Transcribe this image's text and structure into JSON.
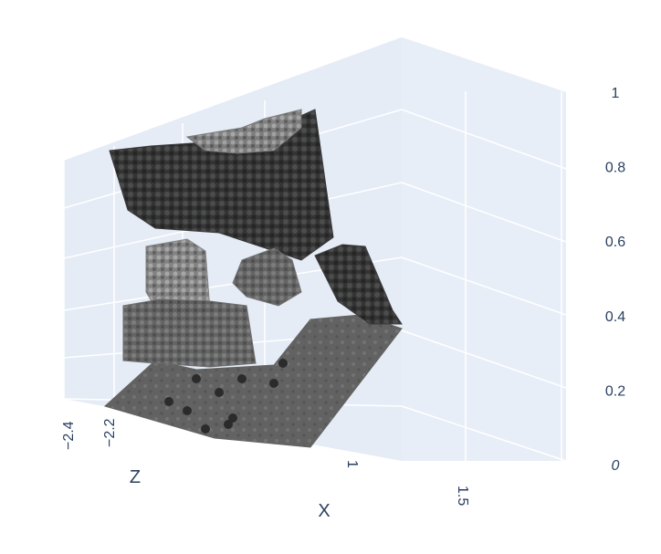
{
  "chart_data": {
    "type": "scatter3d",
    "title": "",
    "axes": {
      "x": {
        "title": "X",
        "tick_labels": [
          "1",
          "1.5"
        ],
        "ticks": [
          1.0,
          1.5
        ]
      },
      "y": {
        "title": "",
        "tick_labels": [
          "0",
          "0.2",
          "0.4",
          "0.6",
          "0.8",
          "1"
        ],
        "ticks": [
          0,
          0.2,
          0.4,
          0.6,
          0.8,
          1.0
        ],
        "range": [
          0,
          1
        ]
      },
      "z": {
        "title": "Z",
        "tick_labels": [
          "−2.4",
          "−2.2"
        ],
        "ticks": [
          -2.4,
          -2.2
        ]
      }
    },
    "grid": true,
    "legend": "none",
    "marker_colorscale": "greys",
    "background_colors": {
      "plane": "#e5ecf6",
      "grid": "#ffffff",
      "axis_text": "#2a3f5f"
    },
    "point_cloud_regions": [
      {
        "name": "floor",
        "shade": "#5f5f5f"
      },
      {
        "name": "back-wall",
        "shade": "#333333"
      },
      {
        "name": "right-panel",
        "shade": "#3a3a3a"
      },
      {
        "name": "left-cabinet",
        "shade": "#808080"
      },
      {
        "name": "left-lower-block",
        "shade": "#6a6a6a"
      },
      {
        "name": "center-object",
        "shade": "#737373"
      },
      {
        "name": "top-fragments",
        "shade": "#777777"
      }
    ]
  }
}
